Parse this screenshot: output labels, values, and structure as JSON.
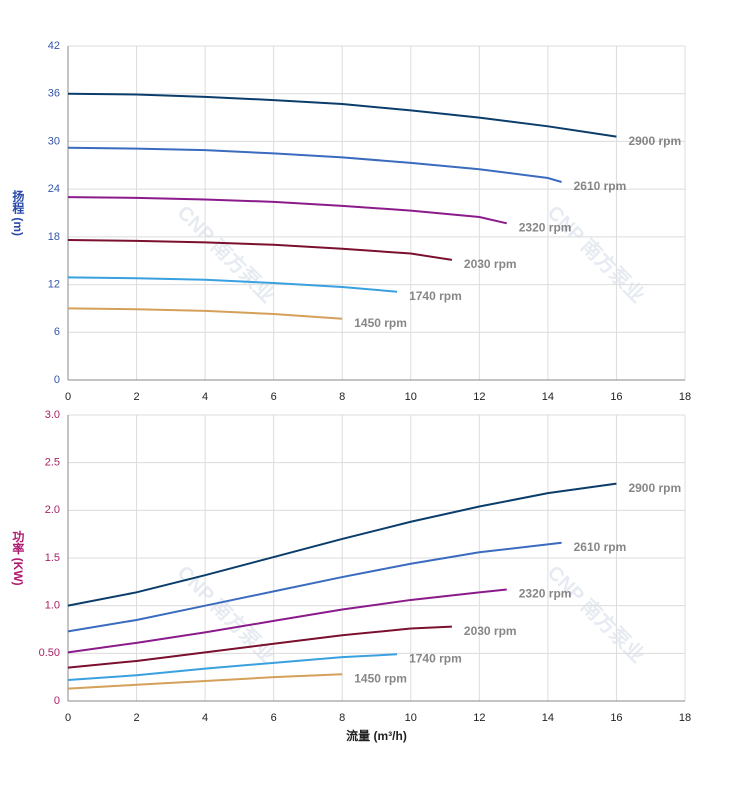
{
  "watermark": "CNP 南方泵业",
  "chart_data": [
    {
      "type": "line",
      "ylabel": "扬程 (m)",
      "xlim": [
        0,
        18
      ],
      "ylim": [
        0,
        42
      ],
      "xticks": [
        0,
        2,
        4,
        6,
        8,
        10,
        12,
        14,
        16,
        18
      ],
      "yticks": [
        0,
        6,
        12,
        18,
        24,
        30,
        36,
        42
      ],
      "grid": true,
      "series": [
        {
          "name": "2900 rpm",
          "color": "#0b3d6b",
          "x": [
            0,
            2,
            4,
            6,
            8,
            10,
            12,
            14,
            16
          ],
          "values": [
            36,
            35.9,
            35.6,
            35.2,
            34.7,
            33.9,
            33,
            31.9,
            30.6
          ]
        },
        {
          "name": "2610 rpm",
          "color": "#3b6bbf",
          "x": [
            0,
            2,
            4,
            6,
            8,
            10,
            12,
            14,
            14.4
          ],
          "values": [
            29.2,
            29.1,
            28.9,
            28.5,
            28,
            27.3,
            26.5,
            25.4,
            24.9
          ]
        },
        {
          "name": "2320 rpm",
          "color": "#8b1a8b",
          "x": [
            0,
            2,
            4,
            6,
            8,
            10,
            12,
            12.8
          ],
          "values": [
            23,
            22.9,
            22.7,
            22.4,
            21.9,
            21.3,
            20.5,
            19.7
          ]
        },
        {
          "name": "2030 rpm",
          "color": "#7a0f2e",
          "x": [
            0,
            2,
            4,
            6,
            8,
            10,
            11.2
          ],
          "values": [
            17.6,
            17.5,
            17.3,
            17,
            16.5,
            15.9,
            15.1
          ]
        },
        {
          "name": "1740 rpm",
          "color": "#3aa0e0",
          "x": [
            0,
            2,
            4,
            6,
            8,
            9.6
          ],
          "values": [
            12.9,
            12.8,
            12.6,
            12.2,
            11.7,
            11.1
          ]
        },
        {
          "name": "1450 rpm",
          "color": "#d4a05a",
          "x": [
            0,
            2,
            4,
            6,
            8
          ],
          "values": [
            9,
            8.9,
            8.7,
            8.3,
            7.7
          ]
        }
      ]
    },
    {
      "type": "line",
      "ylabel": "功率 (KW)",
      "xlabel": "流量 (m³/h)",
      "xlim": [
        0,
        18
      ],
      "ylim": [
        0,
        3
      ],
      "xticks": [
        0,
        2,
        4,
        6,
        8,
        10,
        12,
        14,
        16,
        18
      ],
      "yticks": [
        0,
        {
          "value": 0.5,
          "label": "0.50"
        },
        {
          "value": 1,
          "label": "1.0"
        },
        1.5,
        {
          "value": 2,
          "label": "2.0"
        },
        2.5,
        {
          "value": 3,
          "label": "3.0"
        }
      ],
      "grid": true,
      "series": [
        {
          "name": "2900 rpm",
          "color": "#0b3d6b",
          "x": [
            0,
            2,
            4,
            6,
            8,
            10,
            12,
            14,
            16
          ],
          "values": [
            1.0,
            1.14,
            1.32,
            1.51,
            1.7,
            1.88,
            2.04,
            2.18,
            2.28
          ]
        },
        {
          "name": "2610 rpm",
          "color": "#3b6bbf",
          "x": [
            0,
            2,
            4,
            6,
            8,
            10,
            12,
            14.4
          ],
          "values": [
            0.73,
            0.85,
            1.0,
            1.15,
            1.3,
            1.44,
            1.56,
            1.66
          ]
        },
        {
          "name": "2320 rpm",
          "color": "#8b1a8b",
          "x": [
            0,
            2,
            4,
            6,
            8,
            10,
            12,
            12.8
          ],
          "values": [
            0.51,
            0.61,
            0.72,
            0.84,
            0.96,
            1.06,
            1.14,
            1.17
          ]
        },
        {
          "name": "2030 rpm",
          "color": "#7a0f2e",
          "x": [
            0,
            2,
            4,
            6,
            8,
            10,
            11.2
          ],
          "values": [
            0.35,
            0.42,
            0.51,
            0.6,
            0.69,
            0.76,
            0.78
          ]
        },
        {
          "name": "1740 rpm",
          "color": "#3aa0e0",
          "x": [
            0,
            2,
            4,
            6,
            8,
            9.6
          ],
          "values": [
            0.22,
            0.27,
            0.34,
            0.4,
            0.46,
            0.49
          ]
        },
        {
          "name": "1450 rpm",
          "color": "#d4a05a",
          "x": [
            0,
            2,
            4,
            6,
            8
          ],
          "values": [
            0.13,
            0.17,
            0.21,
            0.25,
            0.28
          ]
        }
      ]
    }
  ]
}
